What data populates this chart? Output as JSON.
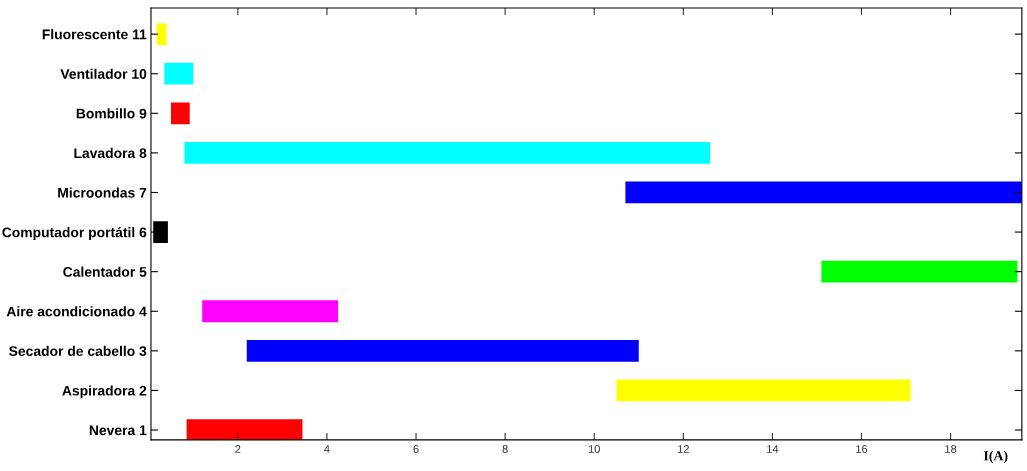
{
  "chart_data": {
    "type": "bar",
    "orientation": "horizontal",
    "xlabel": "I(A)",
    "categories": [
      "Fluorescente 11",
      "Ventilador 10",
      "Bombillo 9",
      "Lavadora 8",
      "Microondas 7",
      "Computador portátil 6",
      "Calentador 5",
      "Aire acondicionado 4",
      "Secador de cabello 3",
      "Aspiradora 2",
      "Nevera 1"
    ],
    "base": [
      0.18,
      0.35,
      0.5,
      0.8,
      10.7,
      0.1,
      15.1,
      1.2,
      2.2,
      10.5,
      0.85
    ],
    "values": [
      0.22,
      0.65,
      0.42,
      11.8,
      8.9,
      0.33,
      4.4,
      3.05,
      8.8,
      6.6,
      2.6
    ],
    "colors": [
      "#ffff00",
      "#00ffff",
      "#ff0000",
      "#00ffff",
      "#0000ff",
      "#000000",
      "#00ff00",
      "#ff00ff",
      "#0000ff",
      "#ffff00",
      "#ff0000"
    ],
    "xlim": [
      0.05,
      19.6
    ],
    "xticks": [
      2,
      4,
      6,
      8,
      10,
      12,
      14,
      16,
      18
    ],
    "grid": false,
    "legend": false
  }
}
